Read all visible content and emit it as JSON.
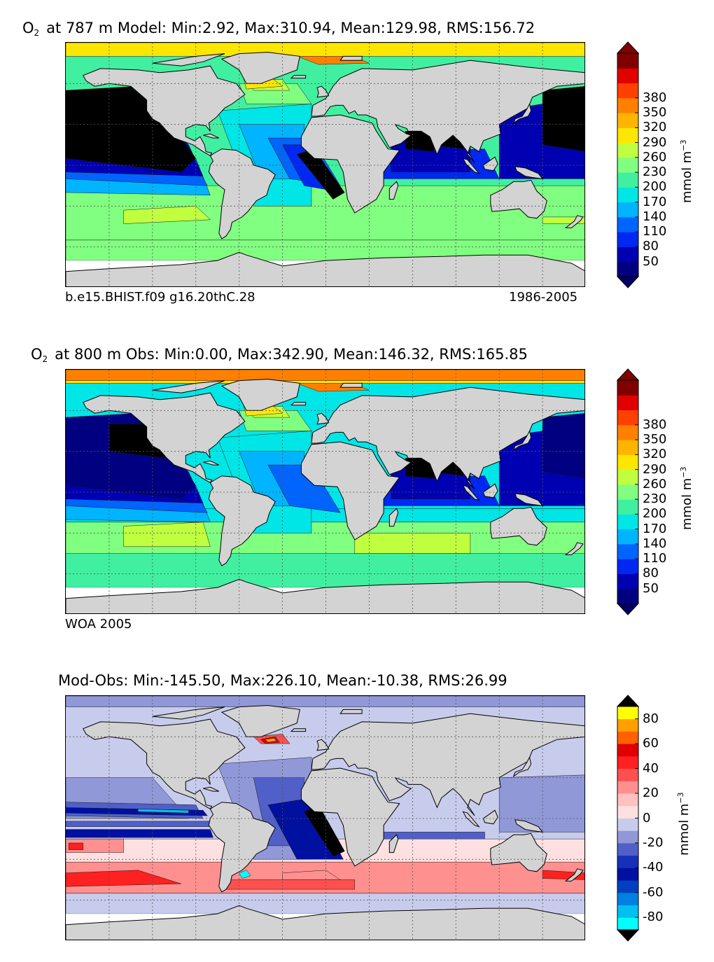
{
  "panels": [
    {
      "title_species": "O",
      "title_sub": "2",
      "title_rest": "at 787 m Model: Min:2.92, Max:310.94, Mean:129.98, RMS:156.72",
      "footer_left": "b.e15.BHIST.f09 g16.20thC.28",
      "footer_right": "1986-2005",
      "unit": "mmol m",
      "unit_exp": "−3",
      "ticks": [
        "50",
        "80",
        "110",
        "140",
        "170",
        "200",
        "230",
        "260",
        "290",
        "320",
        "350",
        "380"
      ],
      "colors": [
        "#000080",
        "#0000b3",
        "#0028f0",
        "#0064ff",
        "#00b4ff",
        "#00e6e6",
        "#40f0a0",
        "#80ff80",
        "#c0ff40",
        "#ffe600",
        "#ffb400",
        "#ff8000",
        "#ff4000",
        "#e00000",
        "#800000"
      ],
      "extend_low": "#000064",
      "extend_high": "#800000",
      "map_kind": "model"
    },
    {
      "title_species": "O",
      "title_sub": "2",
      "title_rest": "at 800 m Obs: Min:0.00, Max:342.90, Mean:146.32, RMS:165.85",
      "footer_left": "WOA 2005",
      "footer_right": "",
      "unit": "mmol m",
      "unit_exp": "−3",
      "ticks": [
        "50",
        "80",
        "110",
        "140",
        "170",
        "200",
        "230",
        "260",
        "290",
        "320",
        "350",
        "380"
      ],
      "colors": [
        "#000080",
        "#0000b3",
        "#0028f0",
        "#0064ff",
        "#00b4ff",
        "#00e6e6",
        "#40f0a0",
        "#80ff80",
        "#c0ff40",
        "#ffe600",
        "#ffb400",
        "#ff8000",
        "#ff4000",
        "#e00000",
        "#800000"
      ],
      "extend_low": "#000064",
      "extend_high": "#800000",
      "map_kind": "obs"
    },
    {
      "title_species": "",
      "title_sub": "",
      "title_rest": "Mod-Obs: Min:-145.50, Max:226.10, Mean:-10.38, RMS:26.99",
      "footer_left": "",
      "footer_right": "",
      "unit": "mmol m",
      "unit_exp": "−3",
      "ticks": [
        "-80",
        "-60",
        "-40",
        "-20",
        "0",
        "20",
        "40",
        "60",
        "80"
      ],
      "colors": [
        "#00ffff",
        "#00c0f0",
        "#0080e0",
        "#0040c0",
        "#0010a0",
        "#1830b8",
        "#5060c8",
        "#9098d8",
        "#c8ccec",
        "#ffe0e0",
        "#ffc0c0",
        "#ff9090",
        "#ff5050",
        "#ff2020",
        "#e00000",
        "#ff6000",
        "#ffa000",
        "#ffff00"
      ],
      "extend_low": "#000000",
      "extend_high": "#000000",
      "map_kind": "diff"
    }
  ],
  "chart_data": [
    {
      "type": "heatmap",
      "title": "O2 at 787 m Model: Min:2.92, Max:310.94, Mean:129.98, RMS:156.72",
      "stats": {
        "min": 2.92,
        "max": 310.94,
        "mean": 129.98,
        "rms": 156.72
      },
      "colorbar_ticks": [
        50,
        80,
        110,
        140,
        170,
        200,
        230,
        260,
        290,
        320,
        350,
        380
      ],
      "colorbar_label": "mmol m^-3",
      "xlim": [
        -180,
        180
      ],
      "ylim": [
        -90,
        90
      ],
      "annotations": [
        "b.e15.BHIST.f09 g16.20thC.28",
        "1986-2005"
      ]
    },
    {
      "type": "heatmap",
      "title": "O2 at 800 m Obs: Min:0.00, Max:342.90, Mean:146.32, RMS:165.85",
      "stats": {
        "min": 0.0,
        "max": 342.9,
        "mean": 146.32,
        "rms": 165.85
      },
      "colorbar_ticks": [
        50,
        80,
        110,
        140,
        170,
        200,
        230,
        260,
        290,
        320,
        350,
        380
      ],
      "colorbar_label": "mmol m^-3",
      "xlim": [
        -180,
        180
      ],
      "ylim": [
        -90,
        90
      ],
      "annotations": [
        "WOA 2005"
      ]
    },
    {
      "type": "heatmap",
      "title": "Mod-Obs: Min:-145.50, Max:226.10, Mean:-10.38, RMS:26.99",
      "stats": {
        "min": -145.5,
        "max": 226.1,
        "mean": -10.38,
        "rms": 26.99
      },
      "colorbar_ticks": [
        -80,
        -60,
        -40,
        -20,
        0,
        20,
        40,
        60,
        80
      ],
      "colorbar_label": "mmol m^-3",
      "xlim": [
        -180,
        180
      ],
      "ylim": [
        -90,
        90
      ]
    }
  ]
}
